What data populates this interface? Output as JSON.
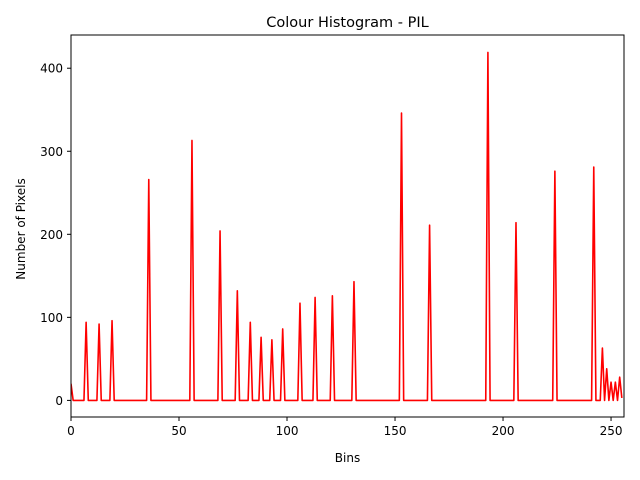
{
  "chart_data": {
    "type": "line",
    "title": "Colour Histogram - PIL",
    "xlabel": "Bins",
    "ylabel": "Number of Pixels",
    "xlim": [
      0,
      256
    ],
    "ylim": [
      -20,
      440
    ],
    "xticks": [
      0,
      50,
      100,
      150,
      200,
      250
    ],
    "yticks": [
      0,
      100,
      200,
      300,
      400
    ],
    "grid": false,
    "series": [
      {
        "name": "histogram",
        "color": "#ff0000",
        "baseline": 0,
        "peaks": [
          {
            "x": 0,
            "y": 20
          },
          {
            "x": 7,
            "y": 94
          },
          {
            "x": 13,
            "y": 92
          },
          {
            "x": 19,
            "y": 96
          },
          {
            "x": 36,
            "y": 266
          },
          {
            "x": 56,
            "y": 313
          },
          {
            "x": 69,
            "y": 204
          },
          {
            "x": 77,
            "y": 132
          },
          {
            "x": 83,
            "y": 94
          },
          {
            "x": 88,
            "y": 76
          },
          {
            "x": 93,
            "y": 73
          },
          {
            "x": 98,
            "y": 86
          },
          {
            "x": 106,
            "y": 117
          },
          {
            "x": 113,
            "y": 124
          },
          {
            "x": 121,
            "y": 126
          },
          {
            "x": 131,
            "y": 143
          },
          {
            "x": 153,
            "y": 346
          },
          {
            "x": 166,
            "y": 211
          },
          {
            "x": 193,
            "y": 419
          },
          {
            "x": 206,
            "y": 214
          },
          {
            "x": 224,
            "y": 276
          },
          {
            "x": 242,
            "y": 281
          },
          {
            "x": 246,
            "y": 63
          },
          {
            "x": 248,
            "y": 38
          },
          {
            "x": 250,
            "y": 22
          },
          {
            "x": 252,
            "y": 22
          },
          {
            "x": 254,
            "y": 28
          },
          {
            "x": 255,
            "y": 3
          }
        ]
      }
    ]
  }
}
